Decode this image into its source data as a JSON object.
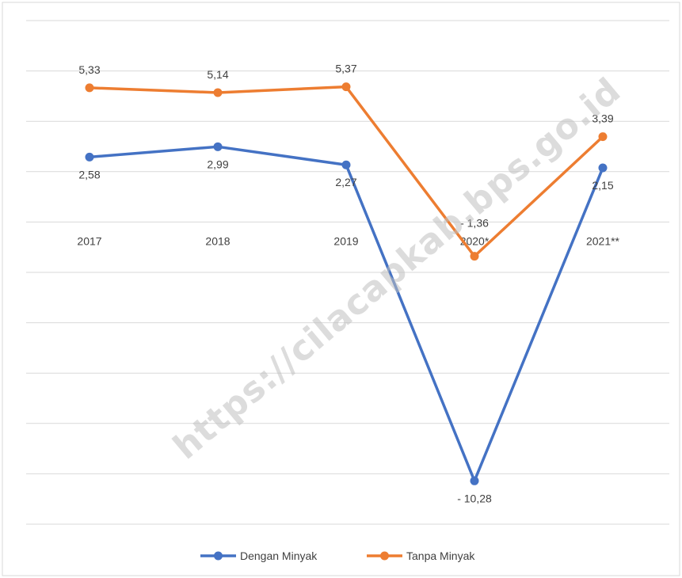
{
  "chart_data": {
    "type": "line",
    "categories": [
      "2017",
      "2018",
      "2019",
      "2020*",
      "2021**"
    ],
    "series": [
      {
        "name": "Dengan Minyak",
        "values": [
          2.58,
          2.99,
          2.27,
          -10.28,
          2.15
        ],
        "labels": [
          "2,58",
          "2,99",
          "2,27",
          "-  10,28",
          "2,15"
        ],
        "color": "#4472c4"
      },
      {
        "name": "Tanpa Minyak",
        "values": [
          5.33,
          5.14,
          5.37,
          -1.36,
          3.39
        ],
        "labels": [
          "5,33",
          "5,14",
          "5,37",
          "-  1,36",
          "3,39"
        ],
        "color": "#ed7d31"
      }
    ],
    "ylim": [
      -12,
      8
    ],
    "ytick_step": 2,
    "grid": true,
    "legend": "bottom-center"
  },
  "watermark": "https://cilacapkab.bps.go.id"
}
